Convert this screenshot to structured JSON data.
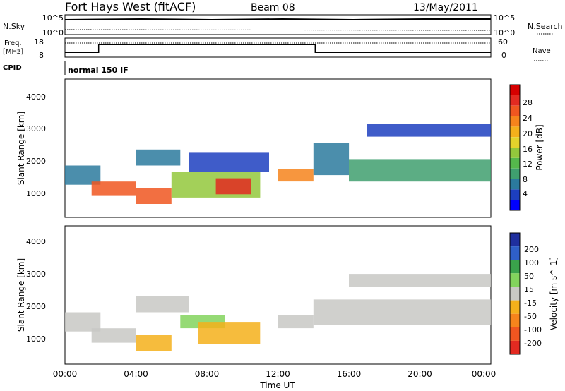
{
  "header": {
    "station": "Fort Hays West (fitACF)",
    "beam": "Beam 08",
    "date": "13/May/2011"
  },
  "side_labels": {
    "nsky": "N.Sky",
    "nsearch": "N.Search",
    "freq": "Freq.",
    "freq_unit": "[MHz]",
    "nave": "Nave",
    "cpid": "CPID"
  },
  "cpid_text": "normal 150 IF",
  "noise_panel": {
    "left_ticks": [
      "10^5",
      "10^0"
    ],
    "right_ticks": [
      "10^5",
      "10^0"
    ]
  },
  "freq_panel": {
    "left_ticks": [
      "18",
      "8"
    ],
    "right_ticks": [
      "60",
      "0"
    ],
    "freq_mhz": [
      {
        "t": 0.0,
        "v": 10.5
      },
      {
        "t": 1.9,
        "v": 10.5
      },
      {
        "t": 1.9,
        "v": 14.6
      },
      {
        "t": 14.1,
        "v": 14.6
      },
      {
        "t": 14.1,
        "v": 10.5
      },
      {
        "t": 24.0,
        "v": 10.5
      }
    ]
  },
  "chart_data": [
    {
      "type": "heatmap",
      "name": "power",
      "ylabel": "Slant Range [km]",
      "y_ticks": [
        "1000",
        "2000",
        "3000",
        "4000"
      ],
      "ylim": [
        180,
        4500
      ],
      "xlim": [
        0,
        24
      ],
      "colorbar": {
        "label": "Power [dB]",
        "ticks": [
          "4",
          "8",
          "12",
          "16",
          "20",
          "24",
          "28"
        ],
        "colors": [
          "#0000ff",
          "#1d3fbf",
          "#2b7a9e",
          "#3f9f6f",
          "#55b84c",
          "#93c83c",
          "#e4d32b",
          "#f5b01b",
          "#f6841c",
          "#f05620",
          "#e32a21",
          "#d60000"
        ]
      },
      "bands": [
        {
          "t0": 0.0,
          "t1": 2.0,
          "r0": 1200,
          "r1": 1800,
          "color": "#2b7a9e"
        },
        {
          "t0": 1.5,
          "t1": 4.0,
          "r0": 850,
          "r1": 1300,
          "color": "#f05620"
        },
        {
          "t0": 4.0,
          "t1": 6.5,
          "r0": 1800,
          "r1": 2300,
          "color": "#2b7a9e"
        },
        {
          "t0": 4.0,
          "t1": 6.0,
          "r0": 600,
          "r1": 1100,
          "color": "#f05620"
        },
        {
          "t0": 6.0,
          "t1": 11.0,
          "r0": 800,
          "r1": 1600,
          "color": "#93c83c"
        },
        {
          "t0": 8.5,
          "t1": 10.5,
          "r0": 900,
          "r1": 1400,
          "color": "#e32a21"
        },
        {
          "t0": 7.0,
          "t1": 11.5,
          "r0": 1600,
          "r1": 2200,
          "color": "#1d3fbf"
        },
        {
          "t0": 12.0,
          "t1": 14.0,
          "r0": 1300,
          "r1": 1700,
          "color": "#f6841c"
        },
        {
          "t0": 14.0,
          "t1": 16.0,
          "r0": 1500,
          "r1": 2500,
          "color": "#2b7a9e"
        },
        {
          "t0": 16.0,
          "t1": 24.0,
          "r0": 1300,
          "r1": 2000,
          "color": "#3f9f6f"
        },
        {
          "t0": 17.0,
          "t1": 24.0,
          "r0": 2700,
          "r1": 3100,
          "color": "#1d3fbf"
        }
      ]
    },
    {
      "type": "heatmap",
      "name": "velocity",
      "ylabel": "Slant Range [km]",
      "y_ticks": [
        "1000",
        "2000",
        "3000",
        "4000"
      ],
      "ylim": [
        180,
        4500
      ],
      "xlim": [
        0,
        24
      ],
      "colorbar": {
        "label": "Velocity [m s^-1]",
        "ticks": [
          "200",
          "100",
          "50",
          "15",
          "-15",
          "-50",
          "-100",
          "-200"
        ],
        "colors": [
          "#1f2f9e",
          "#2f5fc8",
          "#3aa24b",
          "#82d35d",
          "#c8c8c4",
          "#f5b01b",
          "#f6841c",
          "#f05620",
          "#e32a21"
        ]
      },
      "bands": [
        {
          "t0": 0.0,
          "t1": 2.0,
          "r0": 1200,
          "r1": 1800,
          "color": "#c8c8c4"
        },
        {
          "t0": 1.5,
          "t1": 4.0,
          "r0": 850,
          "r1": 1300,
          "color": "#c8c8c4"
        },
        {
          "t0": 4.0,
          "t1": 6.0,
          "r0": 600,
          "r1": 1100,
          "color": "#f5b01b"
        },
        {
          "t0": 4.0,
          "t1": 7.0,
          "r0": 1800,
          "r1": 2300,
          "color": "#c8c8c4"
        },
        {
          "t0": 6.5,
          "t1": 9.0,
          "r0": 1300,
          "r1": 1700,
          "color": "#82d35d"
        },
        {
          "t0": 7.5,
          "t1": 11.0,
          "r0": 800,
          "r1": 1500,
          "color": "#f5b01b"
        },
        {
          "t0": 12.0,
          "t1": 14.0,
          "r0": 1300,
          "r1": 1700,
          "color": "#c8c8c4"
        },
        {
          "t0": 14.0,
          "t1": 24.0,
          "r0": 1400,
          "r1": 2200,
          "color": "#c8c8c4"
        },
        {
          "t0": 16.0,
          "t1": 24.0,
          "r0": 2600,
          "r1": 3000,
          "color": "#c8c8c4"
        }
      ]
    }
  ],
  "x_axis": {
    "label": "Time UT",
    "ticks": [
      "00:00",
      "04:00",
      "08:00",
      "12:00",
      "16:00",
      "20:00",
      "00:00"
    ]
  }
}
